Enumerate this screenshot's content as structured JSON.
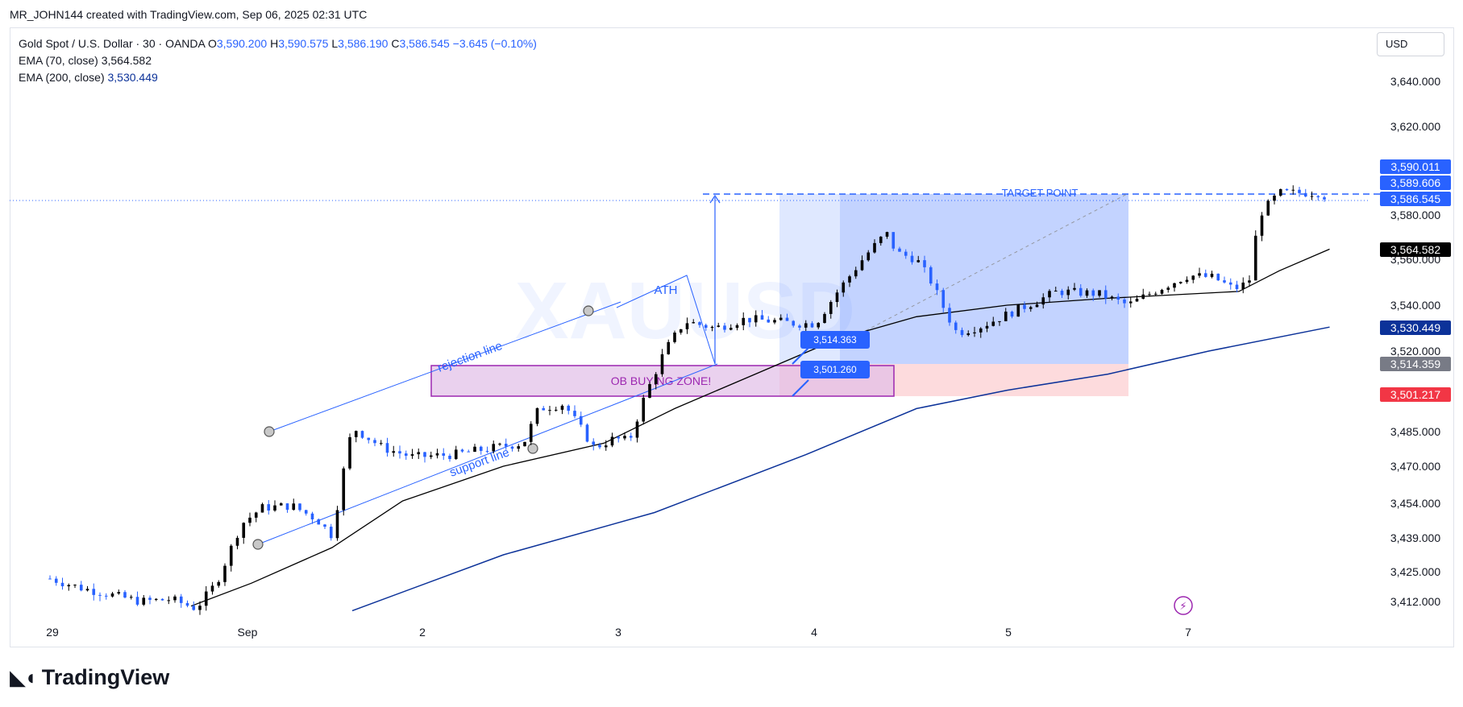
{
  "header": {
    "publisher_line": "MR_JOHN144 created with TradingView.com, Sep 06, 2025 02:31 UTC"
  },
  "legend": {
    "symbol": "Gold Spot / U.S. Dollar · 30 · OANDA",
    "open_label": "O",
    "open": "3,590.200",
    "high_label": "H",
    "high": "3,590.575",
    "low_label": "L",
    "low": "3,586.190",
    "close_label": "C",
    "close": "3,586.545",
    "change": "−3.645 (−0.10%)",
    "ema70_label": "EMA (70, close)",
    "ema70_value": "3,564.582",
    "ema200_label": "EMA (200, close)",
    "ema200_value": "3,530.449"
  },
  "currency_button": "USD",
  "watermark": "XAUUSD",
  "brand": "TradingView",
  "price_tags": [
    {
      "name": "price-tag-high",
      "label": "3,590.011",
      "color": "#2962ff",
      "text_color": "#ffffff"
    },
    {
      "name": "price-tag-mid",
      "label": "3,589.606",
      "color": "#2962ff",
      "text_color": "#ffffff"
    },
    {
      "name": "price-tag-last",
      "label": "3,586.545",
      "color": "#2962ff",
      "text_color": "#ffffff"
    },
    {
      "name": "price-tag-ema70",
      "label": "3,564.582",
      "color": "#000000",
      "text_color": "#ffffff"
    },
    {
      "name": "price-tag-ema200",
      "label": "3,530.449",
      "color": "#0c3299",
      "text_color": "#ffffff"
    },
    {
      "name": "price-tag-entry",
      "label": "3,514.359",
      "color": "#787b86",
      "text_color": "#ffffff"
    },
    {
      "name": "price-tag-stop",
      "label": "3,501.217",
      "color": "#f23645",
      "text_color": "#ffffff"
    }
  ],
  "annotations": {
    "target_point": "TARGET POINT",
    "ath": "ATH",
    "rejection_line": "rejection line",
    "support_line": "support line",
    "ob_zone": "OB BUYING ZONE!",
    "callout_upper": "3,514.363",
    "callout_lower": "3,501.260"
  },
  "chart_data": {
    "type": "candlestick",
    "title": "Gold Spot / U.S. Dollar · 30 · OANDA",
    "y_axis_ticks": [
      "3,640.000",
      "3,620.000",
      "3,580.000",
      "3,560.000",
      "3,540.000",
      "3,520.000",
      "3,485.000",
      "3,470.000",
      "3,454.000",
      "3,439.000",
      "3,425.000",
      "3,412.000"
    ],
    "y_axis_values": [
      3640,
      3620,
      3580,
      3560,
      3540,
      3520,
      3485,
      3470,
      3454,
      3439,
      3425,
      3412
    ],
    "x_axis_ticks": [
      "29",
      "Sep",
      "2",
      "3",
      "4",
      "5",
      "7"
    ],
    "ylim": [
      3405,
      3655
    ],
    "grid": false,
    "last_price": 3586.545,
    "ohlc_last_bar": {
      "open": 3590.2,
      "high": 3590.575,
      "low": 3586.19,
      "close": 3586.545
    },
    "series": [
      {
        "name": "EMA (70, close)",
        "last": 3564.582,
        "color": "#000000"
      },
      {
        "name": "EMA (200, close)",
        "last": 3530.449,
        "color": "#0c3299"
      }
    ],
    "price_path": [
      [
        0,
        3422
      ],
      [
        0.03,
        3418
      ],
      [
        0.06,
        3415
      ],
      [
        0.09,
        3412
      ],
      [
        0.12,
        3413
      ],
      [
        0.145,
        3409
      ],
      [
        0.165,
        3420
      ],
      [
        0.19,
        3445
      ],
      [
        0.21,
        3452
      ],
      [
        0.24,
        3453
      ],
      [
        0.265,
        3447
      ],
      [
        0.28,
        3440
      ],
      [
        0.29,
        3465
      ],
      [
        0.3,
        3487
      ],
      [
        0.33,
        3478
      ],
      [
        0.36,
        3474
      ],
      [
        0.4,
        3475
      ],
      [
        0.44,
        3478
      ],
      [
        0.47,
        3480
      ],
      [
        0.485,
        3495
      ],
      [
        0.51,
        3497
      ],
      [
        0.54,
        3478
      ],
      [
        0.56,
        3482
      ],
      [
        0.575,
        3481
      ],
      [
        0.59,
        3500
      ],
      [
        0.61,
        3520
      ],
      [
        0.63,
        3533
      ],
      [
        0.66,
        3530
      ],
      [
        0.69,
        3534
      ],
      [
        0.72,
        3533
      ],
      [
        0.74,
        3532
      ],
      [
        0.76,
        3532
      ],
      [
        0.78,
        3545
      ],
      [
        0.81,
        3562
      ],
      [
        0.83,
        3572
      ],
      [
        0.84,
        3563
      ],
      [
        0.86,
        3560
      ],
      [
        0.875,
        3550
      ],
      [
        0.89,
        3536
      ],
      [
        0.9,
        3528
      ],
      [
        0.925,
        3531
      ],
      [
        0.96,
        3538
      ],
      [
        1.0,
        3546
      ],
      [
        1.04,
        3545
      ],
      [
        1.07,
        3540
      ],
      [
        1.1,
        3547
      ],
      [
        1.13,
        3553
      ],
      [
        1.155,
        3552
      ],
      [
        1.175,
        3547
      ],
      [
        1.19,
        3550
      ],
      [
        1.2,
        3580
      ],
      [
        1.22,
        3590
      ],
      [
        1.26,
        3590
      ],
      [
        1.27,
        3587
      ]
    ],
    "ema70_path": [
      [
        0.14,
        3410
      ],
      [
        0.2,
        3420
      ],
      [
        0.28,
        3435
      ],
      [
        0.35,
        3455
      ],
      [
        0.45,
        3470
      ],
      [
        0.55,
        3480
      ],
      [
        0.62,
        3495
      ],
      [
        0.7,
        3510
      ],
      [
        0.78,
        3525
      ],
      [
        0.86,
        3535
      ],
      [
        0.95,
        3540
      ],
      [
        1.05,
        3543
      ],
      [
        1.18,
        3546
      ],
      [
        1.22,
        3555
      ],
      [
        1.27,
        3564.582
      ]
    ],
    "ema200_path": [
      [
        0.3,
        3408
      ],
      [
        0.45,
        3432
      ],
      [
        0.6,
        3450
      ],
      [
        0.75,
        3475
      ],
      [
        0.86,
        3495
      ],
      [
        0.95,
        3503
      ],
      [
        1.05,
        3510
      ],
      [
        1.15,
        3520
      ],
      [
        1.27,
        3530.449
      ]
    ]
  }
}
